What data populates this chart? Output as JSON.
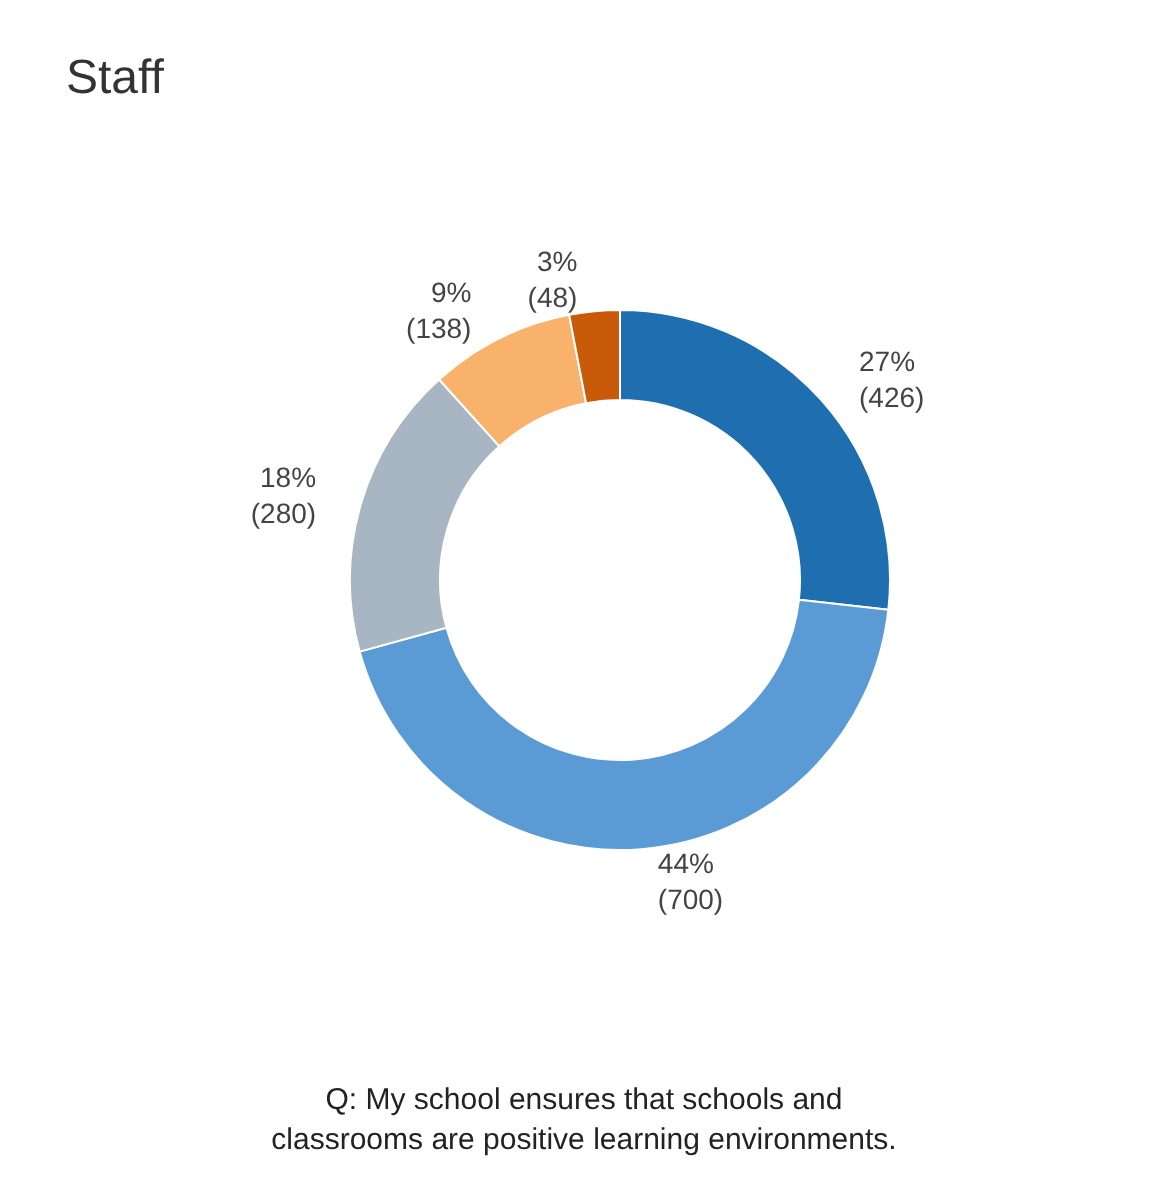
{
  "chart_data": {
    "type": "donut",
    "title": "Staff",
    "categories": [
      null,
      null,
      null,
      null,
      null
    ],
    "values": [
      426,
      700,
      280,
      138,
      48
    ],
    "colors": [
      "#1f6fb0",
      "#5b9bd5",
      "#a8b5c3",
      "#f9b26c",
      "#c85a0a"
    ],
    "value_labels": [
      "27%\n(426)",
      "44%\n(700)",
      "18%\n(280)",
      "9%\n(138)",
      "3%\n(48)"
    ],
    "annotations": [
      "Q: My school ensures that schools and\nclassrooms are positive learning environments."
    ]
  }
}
